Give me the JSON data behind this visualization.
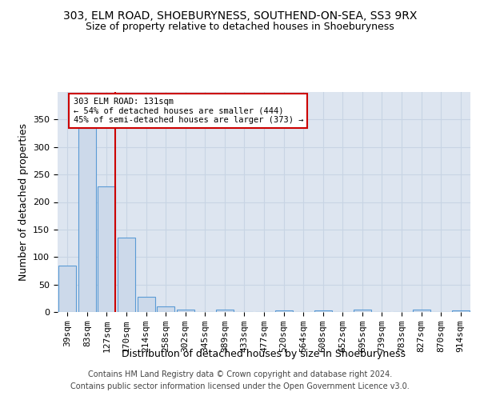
{
  "title_line1": "303, ELM ROAD, SHOEBURYNESS, SOUTHEND-ON-SEA, SS3 9RX",
  "title_line2": "Size of property relative to detached houses in Shoeburyness",
  "xlabel": "Distribution of detached houses by size in Shoeburyness",
  "ylabel": "Number of detached properties",
  "footer_line1": "Contains HM Land Registry data © Crown copyright and database right 2024.",
  "footer_line2": "Contains public sector information licensed under the Open Government Licence v3.0.",
  "categories": [
    "39sqm",
    "83sqm",
    "127sqm",
    "170sqm",
    "214sqm",
    "258sqm",
    "302sqm",
    "345sqm",
    "389sqm",
    "433sqm",
    "477sqm",
    "520sqm",
    "564sqm",
    "608sqm",
    "652sqm",
    "695sqm",
    "739sqm",
    "783sqm",
    "827sqm",
    "870sqm",
    "914sqm"
  ],
  "values": [
    85,
    335,
    229,
    136,
    28,
    10,
    5,
    0,
    5,
    0,
    0,
    3,
    0,
    3,
    0,
    5,
    0,
    0,
    5,
    0,
    3
  ],
  "bar_color": "#ccd9ea",
  "bar_edge_color": "#5b9bd5",
  "grid_color": "#c8d4e4",
  "background_color": "#dde5f0",
  "annotation_box_edgecolor": "#cc0000",
  "property_line_color": "#cc0000",
  "property_bin_index": 2,
  "annotation_text_line1": "303 ELM ROAD: 131sqm",
  "annotation_text_line2": "← 54% of detached houses are smaller (444)",
  "annotation_text_line3": "45% of semi-detached houses are larger (373) →",
  "ylim_max": 400,
  "yticks": [
    0,
    50,
    100,
    150,
    200,
    250,
    300,
    350
  ],
  "title_fontsize": 10,
  "subtitle_fontsize": 9,
  "ylabel_fontsize": 9,
  "xlabel_fontsize": 9,
  "tick_fontsize": 8,
  "footer_fontsize": 7
}
